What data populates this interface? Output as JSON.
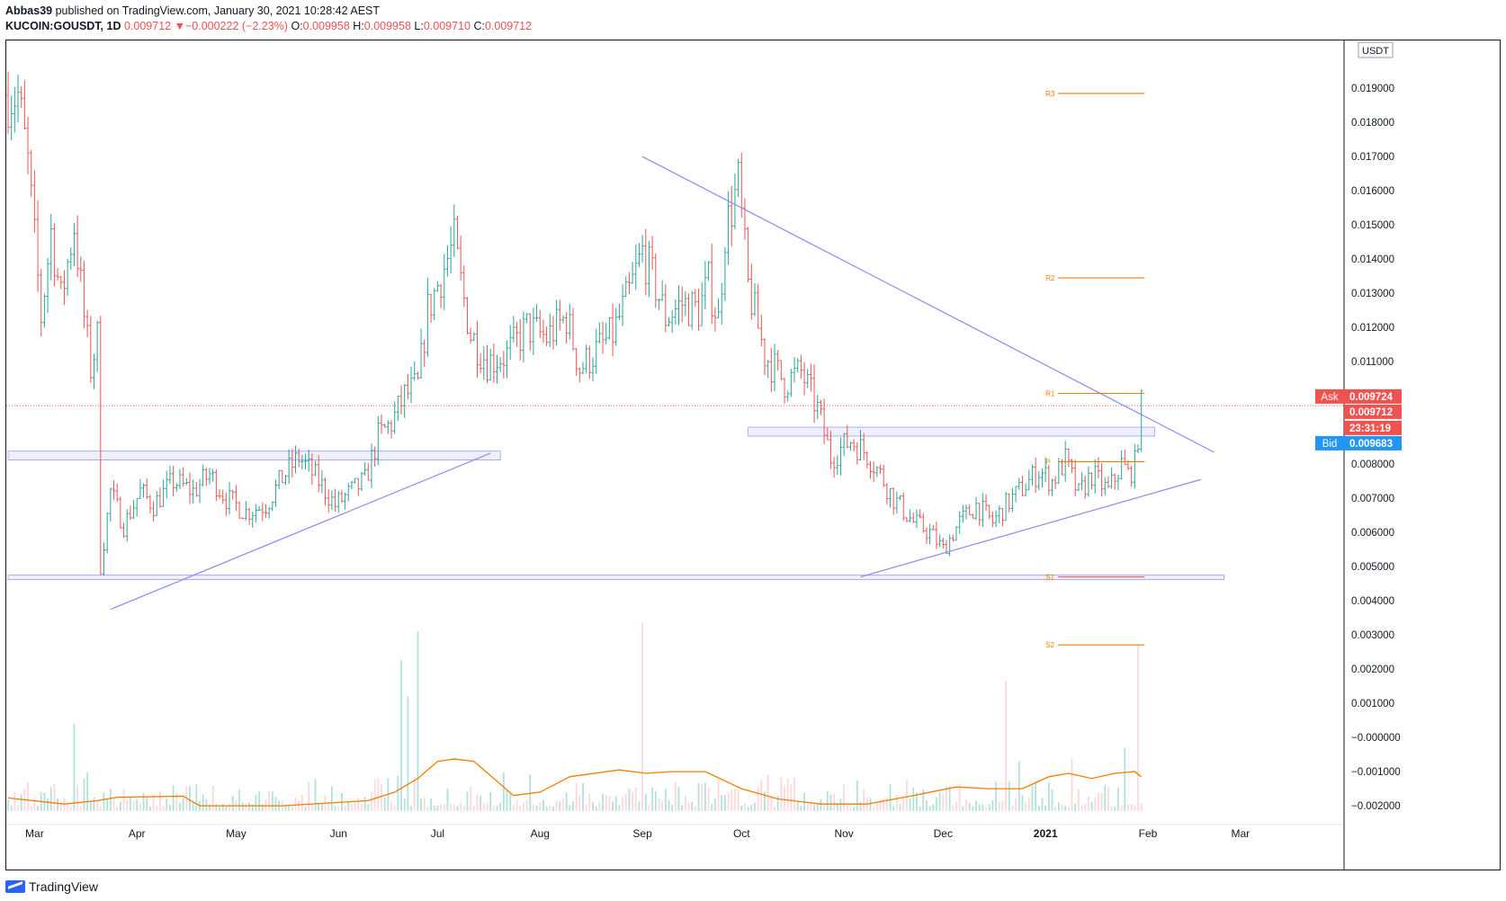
{
  "header": {
    "publisher": "Abbas39",
    "published_text": " published on TradingView.com, January 30, 2021 10:28:42 AEST",
    "symbol": "KUCOIN:GOUSDT, 1D",
    "last": "0.009712",
    "change_arrow": "▼",
    "change": "−0.000222 (−2.23%)",
    "o_label": "O:",
    "o": "0.009958",
    "h_label": "H:",
    "h": "0.009958",
    "l_label": "L:",
    "l": "0.009710",
    "c_label": "C:",
    "c": "0.009712"
  },
  "logo_text": "TradingView",
  "colors": {
    "up": "#26a69a",
    "down": "#ef5350",
    "trendline": "#8b8bf2",
    "pivot": "#f57c00",
    "volume_ma": "#f57c00",
    "ask": "#ef5350",
    "bid": "#2196f3"
  },
  "price_tags": {
    "ask_label": "Ask",
    "ask": "0.009724",
    "last": "0.009712",
    "countdown": "23:31:19",
    "bid_label": "Bid",
    "bid": "0.009683"
  },
  "chart_data": {
    "type": "candlestick",
    "symbol": "KUCOIN:GOUSDT",
    "interval": "1D",
    "currency_label": "USDT",
    "yticks": [
      "0.019000",
      "0.018000",
      "0.017000",
      "0.016000",
      "0.015000",
      "0.014000",
      "0.013000",
      "0.012000",
      "0.011000",
      "0.010000",
      "0.009000",
      "0.008000",
      "0.007000",
      "0.006000",
      "0.005000",
      "0.004000",
      "0.003000",
      "0.002000",
      "0.001000",
      "−0.000000",
      "−0.001000",
      "−0.002000"
    ],
    "ytick_values": [
      0.019,
      0.018,
      0.017,
      0.016,
      0.015,
      0.014,
      0.013,
      0.012,
      0.011,
      0.01,
      0.009,
      0.008,
      0.007,
      0.006,
      0.005,
      0.004,
      0.003,
      0.002,
      0.001,
      0.0,
      -0.001,
      -0.002
    ],
    "ylim": [
      -0.00255,
      0.0204
    ],
    "xticks": [
      {
        "label": "Mar",
        "date": "2020-03-01",
        "bold": false
      },
      {
        "label": "Apr",
        "date": "2020-04-01",
        "bold": false
      },
      {
        "label": "May",
        "date": "2020-05-01",
        "bold": false
      },
      {
        "label": "Jun",
        "date": "2020-06-01",
        "bold": false
      },
      {
        "label": "Jul",
        "date": "2020-07-01",
        "bold": false
      },
      {
        "label": "Aug",
        "date": "2020-08-01",
        "bold": false
      },
      {
        "label": "Sep",
        "date": "2020-09-01",
        "bold": false
      },
      {
        "label": "Oct",
        "date": "2020-10-01",
        "bold": false
      },
      {
        "label": "Nov",
        "date": "2020-11-01",
        "bold": false
      },
      {
        "label": "Dec",
        "date": "2020-12-01",
        "bold": false
      },
      {
        "label": "2021",
        "date": "2021-01-01",
        "bold": true
      },
      {
        "label": "Feb",
        "date": "2021-02-01",
        "bold": false
      },
      {
        "label": "Mar",
        "date": "2021-03-01",
        "bold": false
      }
    ],
    "xlim": [
      "2020-02-22",
      "2021-03-31"
    ],
    "price_path": [
      [
        "2020-02-22",
        0.0188
      ],
      [
        "2020-02-25",
        0.0188
      ],
      [
        "2020-02-28",
        0.0168
      ],
      [
        "2020-03-03",
        0.0123
      ],
      [
        "2020-03-06",
        0.0148
      ],
      [
        "2020-03-09",
        0.0128
      ],
      [
        "2020-03-13",
        0.015
      ],
      [
        "2020-03-16",
        0.0123
      ],
      [
        "2020-03-18",
        0.0108
      ],
      [
        "2020-03-20",
        0.0117
      ],
      [
        "2020-03-21",
        0.005
      ],
      [
        "2020-03-24",
        0.0072
      ],
      [
        "2020-03-28",
        0.0062
      ],
      [
        "2020-04-02",
        0.0072
      ],
      [
        "2020-04-06",
        0.0068
      ],
      [
        "2020-04-12",
        0.0075
      ],
      [
        "2020-04-18",
        0.0072
      ],
      [
        "2020-04-23",
        0.0077
      ],
      [
        "2020-04-28",
        0.007
      ],
      [
        "2020-05-04",
        0.0066
      ],
      [
        "2020-05-10",
        0.0068
      ],
      [
        "2020-05-15",
        0.0076
      ],
      [
        "2020-05-20",
        0.0082
      ],
      [
        "2020-05-26",
        0.0075
      ],
      [
        "2020-05-31",
        0.0068
      ],
      [
        "2020-06-05",
        0.0072
      ],
      [
        "2020-06-09",
        0.0075
      ],
      [
        "2020-06-13",
        0.0088
      ],
      [
        "2020-06-17",
        0.0092
      ],
      [
        "2020-06-21",
        0.01
      ],
      [
        "2020-06-25",
        0.0103
      ],
      [
        "2020-06-28",
        0.0125
      ],
      [
        "2020-07-02",
        0.0135
      ],
      [
        "2020-07-06",
        0.0145
      ],
      [
        "2020-07-08",
        0.0133
      ],
      [
        "2020-07-11",
        0.0118
      ],
      [
        "2020-07-16",
        0.011
      ],
      [
        "2020-07-22",
        0.0112
      ],
      [
        "2020-07-28",
        0.012
      ],
      [
        "2020-08-03",
        0.0117
      ],
      [
        "2020-08-09",
        0.0123
      ],
      [
        "2020-08-13",
        0.0108
      ],
      [
        "2020-08-18",
        0.0113
      ],
      [
        "2020-08-23",
        0.0118
      ],
      [
        "2020-08-28",
        0.013
      ],
      [
        "2020-09-01",
        0.0142
      ],
      [
        "2020-09-05",
        0.0132
      ],
      [
        "2020-09-08",
        0.0123
      ],
      [
        "2020-09-13",
        0.0127
      ],
      [
        "2020-09-18",
        0.0125
      ],
      [
        "2020-09-21",
        0.0133
      ],
      [
        "2020-09-24",
        0.0122
      ],
      [
        "2020-09-26",
        0.0148
      ],
      [
        "2020-09-30",
        0.0162
      ],
      [
        "2020-10-03",
        0.0132
      ],
      [
        "2020-10-08",
        0.0112
      ],
      [
        "2020-10-14",
        0.0104
      ],
      [
        "2020-10-19",
        0.0107
      ],
      [
        "2020-10-24",
        0.0096
      ],
      [
        "2020-10-28",
        0.0082
      ],
      [
        "2020-11-03",
        0.0087
      ],
      [
        "2020-11-08",
        0.0083
      ],
      [
        "2020-11-12",
        0.0077
      ],
      [
        "2020-11-16",
        0.007
      ],
      [
        "2020-11-22",
        0.0063
      ],
      [
        "2020-11-27",
        0.006
      ],
      [
        "2020-12-01",
        0.0055
      ],
      [
        "2020-12-06",
        0.0063
      ],
      [
        "2020-12-11",
        0.0068
      ],
      [
        "2020-12-16",
        0.0063
      ],
      [
        "2020-12-20",
        0.0068
      ],
      [
        "2020-12-25",
        0.0073
      ],
      [
        "2020-12-30",
        0.0078
      ],
      [
        "2021-01-03",
        0.0075
      ],
      [
        "2021-01-07",
        0.0081
      ],
      [
        "2021-01-11",
        0.0071
      ],
      [
        "2021-01-15",
        0.0077
      ],
      [
        "2021-01-20",
        0.0072
      ],
      [
        "2021-01-24",
        0.008
      ],
      [
        "2021-01-26",
        0.0077
      ],
      [
        "2021-01-28",
        0.008
      ],
      [
        "2021-01-30",
        0.0097
      ]
    ],
    "trendlines": [
      {
        "name": "resistance",
        "from": [
          "2020-09-01",
          0.017
        ],
        "to": [
          "2021-02-21",
          0.00835
        ]
      },
      {
        "name": "support-left",
        "from": [
          "2020-03-24",
          0.00375
        ],
        "to": [
          "2020-07-17",
          0.00832
        ]
      },
      {
        "name": "support-right",
        "from": [
          "2020-11-06",
          0.0047
        ],
        "to": [
          "2021-02-17",
          0.00755
        ]
      }
    ],
    "zones": [
      {
        "from": "2020-02-22",
        "to": "2020-07-20",
        "low": 0.00812,
        "high": 0.00838
      },
      {
        "from": "2020-10-03",
        "to": "2021-02-03",
        "low": 0.00882,
        "high": 0.00908
      },
      {
        "from": "2020-02-22",
        "to": "2021-02-24",
        "low": 0.00462,
        "high": 0.00475
      }
    ],
    "pivots": [
      {
        "label": "R3",
        "value": 0.01885
      },
      {
        "label": "R2",
        "value": 0.01345
      },
      {
        "label": "R1",
        "value": 0.01007
      },
      {
        "label": "P",
        "value": 0.00807
      },
      {
        "label": "S1",
        "value": 0.0047
      },
      {
        "label": "S2",
        "value": 0.00271
      }
    ],
    "pivot_range": [
      "2021-01-01",
      "2021-01-31"
    ],
    "last_price": 0.009712,
    "volume": {
      "ma_color": "#f57c00",
      "ma_path": [
        [
          "2020-02-22",
          -0.00177
        ],
        [
          "2020-03-10",
          -0.00195
        ],
        [
          "2020-03-20",
          -0.00185
        ],
        [
          "2020-03-26",
          -0.00175
        ],
        [
          "2020-04-15",
          -0.00172
        ],
        [
          "2020-04-20",
          -0.002
        ],
        [
          "2020-05-15",
          -0.002
        ],
        [
          "2020-06-10",
          -0.00185
        ],
        [
          "2020-06-18",
          -0.0016
        ],
        [
          "2020-06-25",
          -0.0012
        ],
        [
          "2020-07-01",
          -0.0007
        ],
        [
          "2020-07-06",
          -0.00063
        ],
        [
          "2020-07-12",
          -0.0007
        ],
        [
          "2020-07-18",
          -0.0012
        ],
        [
          "2020-07-24",
          -0.0017
        ],
        [
          "2020-08-01",
          -0.0016
        ],
        [
          "2020-08-10",
          -0.00115
        ],
        [
          "2020-08-25",
          -0.00095
        ],
        [
          "2020-09-02",
          -0.00105
        ],
        [
          "2020-09-10",
          -0.001
        ],
        [
          "2020-09-20",
          -0.001
        ],
        [
          "2020-10-01",
          -0.0015
        ],
        [
          "2020-10-12",
          -0.0018
        ],
        [
          "2020-10-25",
          -0.00195
        ],
        [
          "2020-11-08",
          -0.00195
        ],
        [
          "2020-11-22",
          -0.0017
        ],
        [
          "2020-12-05",
          -0.00145
        ],
        [
          "2020-12-15",
          -0.0015
        ],
        [
          "2020-12-25",
          -0.0015
        ],
        [
          "2021-01-02",
          -0.00115
        ],
        [
          "2021-01-08",
          -0.00105
        ],
        [
          "2021-01-15",
          -0.0012
        ],
        [
          "2021-01-22",
          -0.00105
        ],
        [
          "2021-01-28",
          -0.001
        ],
        [
          "2021-01-30",
          -0.00115
        ]
      ],
      "spikes": [
        [
          "2020-03-13",
          0.0004
        ],
        [
          "2020-06-20",
          0.00225
        ],
        [
          "2020-06-25",
          0.0031
        ],
        [
          "2020-06-22",
          0.0012
        ],
        [
          "2020-09-01",
          0.00335
        ],
        [
          "2020-12-20",
          0.00165
        ],
        [
          "2021-01-29",
          0.0027
        ],
        [
          "2021-01-25",
          -0.0003
        ],
        [
          "2021-01-09",
          -0.0006
        ],
        [
          "2020-12-24",
          -0.0007
        ]
      ]
    }
  }
}
